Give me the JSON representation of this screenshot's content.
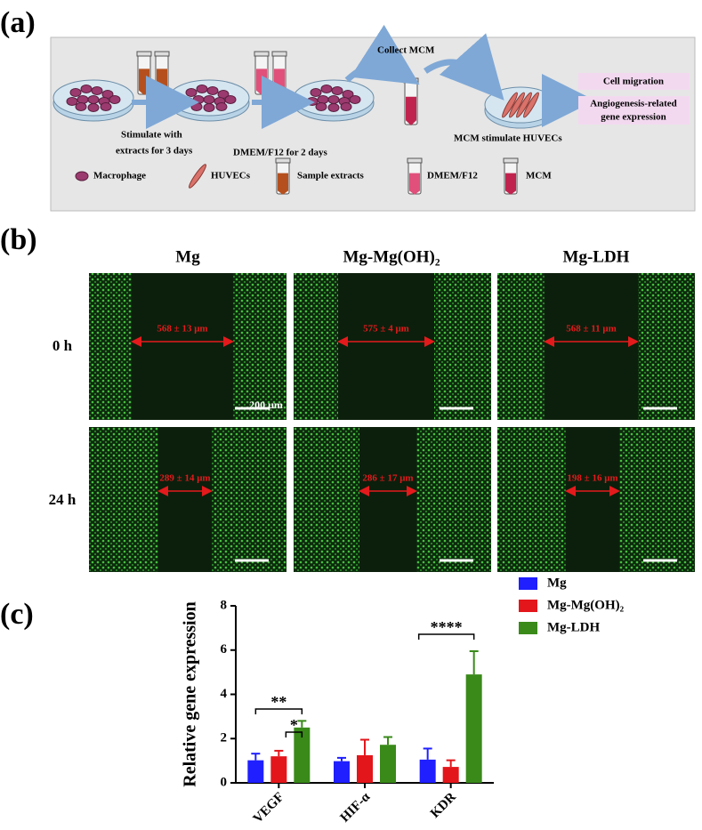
{
  "panel_labels": [
    "(a)",
    "(b)",
    "(c)"
  ],
  "schematic": {
    "steps": [
      "Stimulate with",
      "extracts for 3 days",
      "DMEM/F12 for 2 days",
      "Collect MCM",
      "MCM  stimulate HUVECs"
    ],
    "outputs": [
      "Cell migration",
      "Angiogenesis-related",
      "gene expression"
    ],
    "legend": [
      "Macrophage",
      "HUVECs",
      "Sample extracts",
      "DMEM/F12",
      "MCM"
    ]
  },
  "micrographs": {
    "columns": [
      "Mg",
      "Mg-Mg(OH)₂",
      "Mg-LDH"
    ],
    "rows": [
      "0 h",
      "24 h"
    ],
    "widths": [
      [
        "568 ± 13 μm",
        "575 ± 4 μm",
        "568 ± 11 μm"
      ],
      [
        "289 ± 14 μm",
        "286 ± 17 μm",
        "198 ± 16 μm"
      ]
    ],
    "scale_bar": "200 μm"
  },
  "chart_data": {
    "type": "bar",
    "y_label": "Relative gene expression",
    "categories": [
      "VEGF",
      "HIF-α",
      "KDR"
    ],
    "series": [
      {
        "name": "Mg",
        "color": "#1f1fff",
        "values": [
          1.02,
          0.98,
          1.05
        ],
        "errors": [
          0.3,
          0.15,
          0.5
        ]
      },
      {
        "name": "Mg-Mg(OH)₂",
        "color": "#e3161b",
        "values": [
          1.2,
          1.25,
          0.72
        ],
        "errors": [
          0.25,
          0.7,
          0.3
        ]
      },
      {
        "name": "Mg-LDH",
        "color": "#3a8a1a",
        "values": [
          2.5,
          1.72,
          4.9
        ],
        "errors": [
          0.3,
          0.35,
          1.05
        ]
      }
    ],
    "ylim": [
      0,
      8
    ],
    "yticks": [
      0,
      2,
      4,
      6,
      8
    ],
    "annotations": [
      "**",
      "*",
      "****"
    ],
    "legend": "right",
    "grid": false
  }
}
